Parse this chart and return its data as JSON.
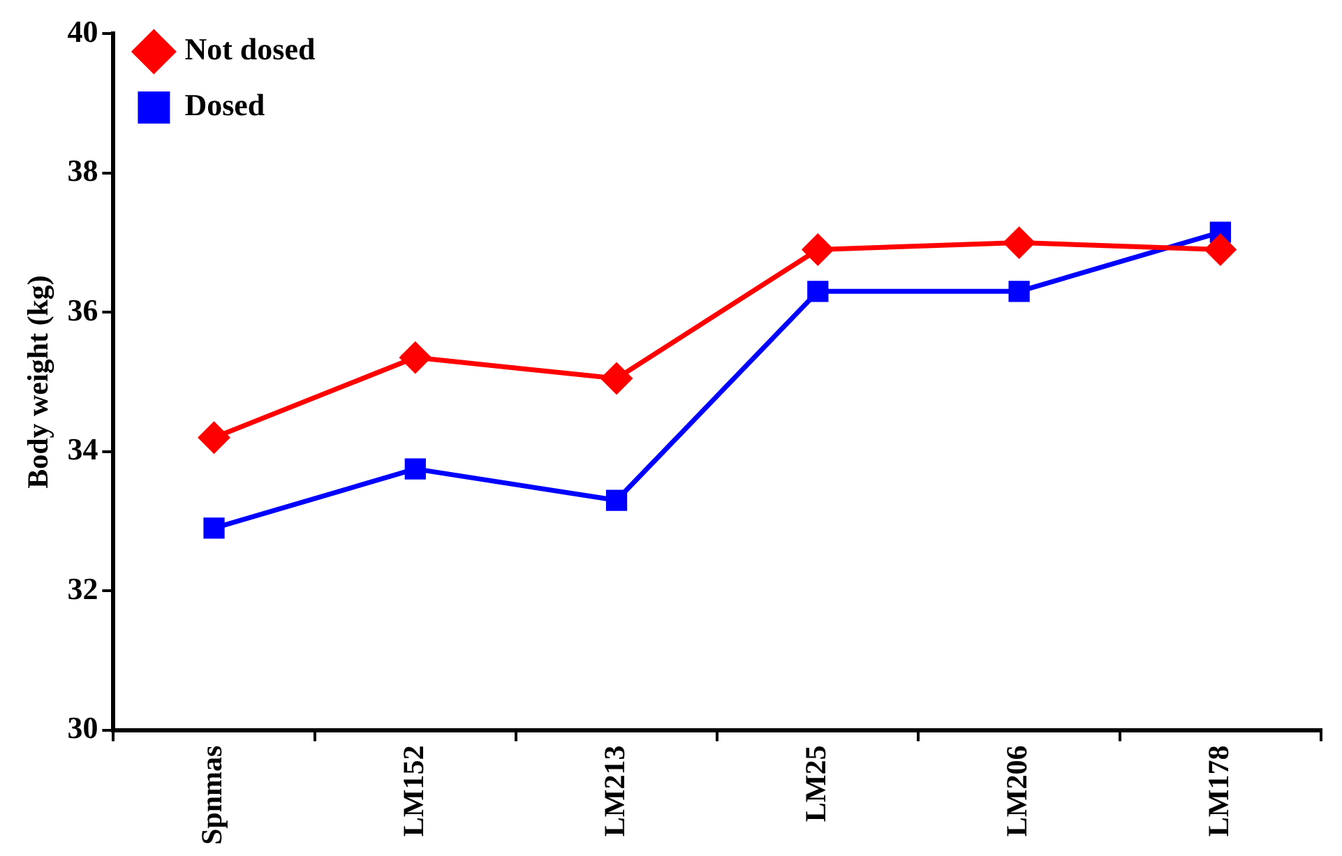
{
  "chart_data": {
    "type": "line",
    "ylabel": "Body weight (kg)",
    "categories": [
      "Spnmas",
      "LM152",
      "LM213",
      "LM25",
      "LM206",
      "LM178"
    ],
    "series": [
      {
        "name": "Not dosed",
        "color": "#ff0000",
        "marker": "diamond",
        "values": [
          34.2,
          35.35,
          35.05,
          36.9,
          37.0,
          36.9
        ]
      },
      {
        "name": "Dosed",
        "color": "#0000ff",
        "marker": "square",
        "values": [
          32.9,
          33.75,
          33.3,
          36.3,
          36.3,
          37.15
        ]
      }
    ],
    "ylim": [
      30,
      40
    ],
    "yticks": [
      30,
      32,
      34,
      36,
      38,
      40
    ],
    "grid": false,
    "legend": "top left"
  }
}
